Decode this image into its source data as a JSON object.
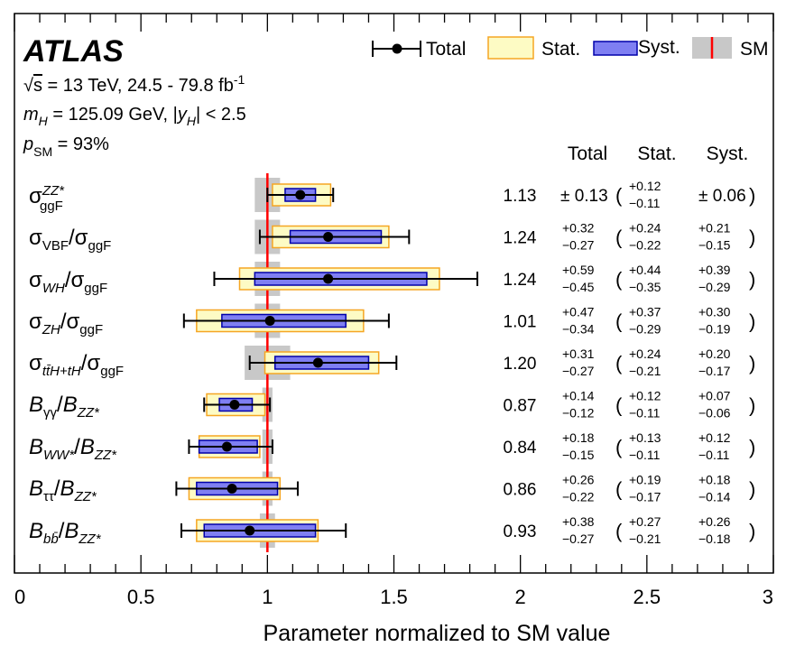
{
  "chart_data": {
    "type": "forest",
    "experiment": "ATLAS",
    "info_lines": [
      "√s = 13 TeV, 24.5 - 79.8 fb⁻¹",
      "m_H = 125.09 GeV, |y_H| < 2.5",
      "p_SM = 93%"
    ],
    "legend": [
      "Total",
      "Stat.",
      "Syst.",
      "SM"
    ],
    "columns": [
      "Total",
      "Stat.",
      "Syst."
    ],
    "xlabel": "Parameter normalized to SM value",
    "xlim": [
      0,
      3
    ],
    "xticks": [
      "0",
      "0.5",
      "1",
      "1.5",
      "2",
      "2.5",
      "3"
    ],
    "sm_value": 1,
    "rows": [
      {
        "label": "σ_ggF^ZZ*",
        "value": 1.13,
        "value_text": "1.13",
        "total": [
          "+0.13",
          "−0.13"
        ],
        "stat": [
          "+0.12",
          "−0.11"
        ],
        "syst": [
          "+0.06",
          "−0.06"
        ],
        "total_text": "± 0.13",
        "syst_text": "± 0.06",
        "sm_band": [
          0.95,
          1.05
        ]
      },
      {
        "label": "σ_VBF/σ_ggF",
        "value": 1.24,
        "value_text": "1.24",
        "total": [
          "+0.32",
          "−0.27"
        ],
        "stat": [
          "+0.24",
          "−0.22"
        ],
        "syst": [
          "+0.21",
          "−0.15"
        ],
        "sm_band": [
          0.95,
          1.05
        ]
      },
      {
        "label": "σ_WH/σ_ggF",
        "value": 1.24,
        "value_text": "1.24",
        "total": [
          "+0.59",
          "−0.45"
        ],
        "stat": [
          "+0.44",
          "−0.35"
        ],
        "syst": [
          "+0.39",
          "−0.29"
        ],
        "sm_band": [
          0.95,
          1.05
        ]
      },
      {
        "label": "σ_ZH/σ_ggF",
        "value": 1.01,
        "value_text": "1.01",
        "total": [
          "+0.47",
          "−0.34"
        ],
        "stat": [
          "+0.37",
          "−0.29"
        ],
        "syst": [
          "+0.30",
          "−0.19"
        ],
        "sm_band": [
          0.95,
          1.05
        ]
      },
      {
        "label": "σ_ttH+tH/σ_ggF",
        "value": 1.2,
        "value_text": "1.20",
        "total": [
          "+0.31",
          "−0.27"
        ],
        "stat": [
          "+0.24",
          "−0.21"
        ],
        "syst": [
          "+0.20",
          "−0.17"
        ],
        "sm_band": [
          0.91,
          1.09
        ]
      },
      {
        "label": "B_γγ/B_ZZ*",
        "value": 0.87,
        "value_text": "0.87",
        "total": [
          "+0.14",
          "−0.12"
        ],
        "stat": [
          "+0.12",
          "−0.11"
        ],
        "syst": [
          "+0.07",
          "−0.06"
        ],
        "sm_band": [
          0.98,
          1.02
        ]
      },
      {
        "label": "B_WW*/B_ZZ*",
        "value": 0.84,
        "value_text": "0.84",
        "total": [
          "+0.18",
          "−0.15"
        ],
        "stat": [
          "+0.13",
          "−0.11"
        ],
        "syst": [
          "+0.12",
          "−0.11"
        ],
        "sm_band": [
          0.98,
          1.02
        ]
      },
      {
        "label": "B_ττ/B_ZZ*",
        "value": 0.86,
        "value_text": "0.86",
        "total": [
          "+0.26",
          "−0.22"
        ],
        "stat": [
          "+0.19",
          "−0.17"
        ],
        "syst": [
          "+0.18",
          "−0.14"
        ],
        "sm_band": [
          0.98,
          1.02
        ]
      },
      {
        "label": "B_bb/B_ZZ*",
        "value": 0.93,
        "value_text": "0.93",
        "total": [
          "+0.38",
          "−0.27"
        ],
        "stat": [
          "+0.27",
          "−0.21"
        ],
        "syst": [
          "+0.26",
          "−0.18"
        ],
        "sm_band": [
          0.97,
          1.03
        ]
      }
    ],
    "colors": {
      "stat_fill": "#fdfbc4",
      "stat_edge": "#f5a623",
      "syst_fill": "#7f7ff2",
      "syst_edge": "#0000aa",
      "sm_band": "#c8c8c8",
      "sm_line": "#ff0000",
      "marker": "#000000"
    }
  }
}
